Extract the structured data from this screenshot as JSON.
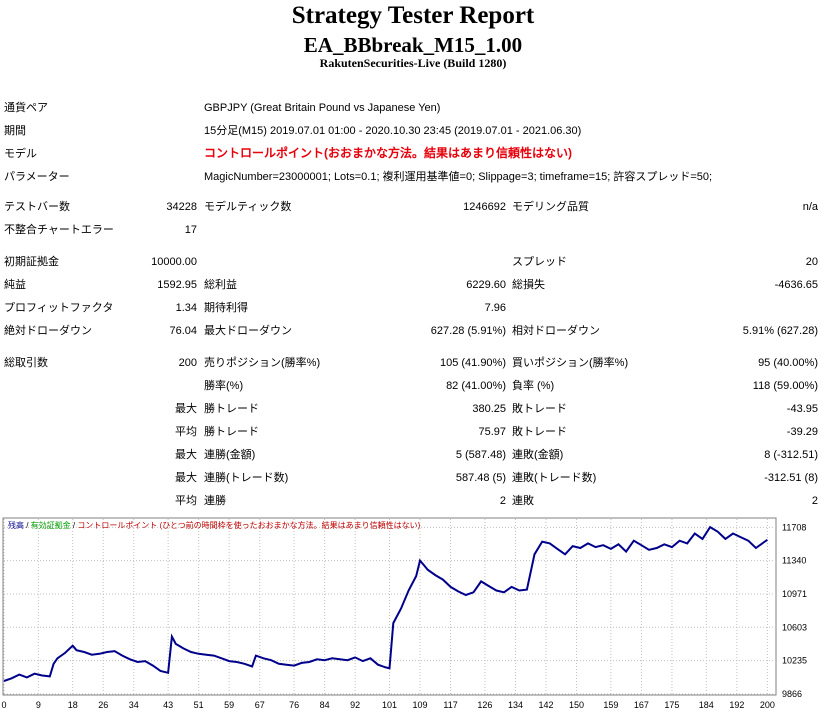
{
  "header": {
    "title": "Strategy Tester Report",
    "ea_name": "EA_BBbreak_M15_1.00",
    "broker": "RakutenSecurities-Live (Build 1280)"
  },
  "info": {
    "pair_label": "通貨ペア",
    "pair_value": "GBPJPY (Great Britain Pound vs Japanese Yen)",
    "period_label": "期間",
    "period_value": "15分足(M15) 2019.07.01 01:00 - 2020.10.30 23:45 (2019.07.01 - 2021.06.30)",
    "model_label": "モデル",
    "model_value": "コントロールポイント(おおまかな方法。結果はあまり信頼性はない)",
    "params_label": "パラメーター",
    "params_value": "MagicNumber=23000001; Lots=0.1; 複利運用基準値=0; Slippage=3; timeframe=15; 許容スプレッド=50;"
  },
  "stats": {
    "test_bars_label": "テストバー数",
    "test_bars": "34228",
    "model_ticks_label": "モデルティック数",
    "model_ticks": "1246692",
    "model_quality_label": "モデリング品質",
    "model_quality": "n/a",
    "mismatch_label": "不整合チャートエラー",
    "mismatch": "17",
    "deposit_label": "初期証拠金",
    "deposit": "10000.00",
    "spread_label": "スプレッド",
    "spread": "20",
    "net_label": "純益",
    "net": "1592.95",
    "gross_profit_label": "総利益",
    "gross_profit": "6229.60",
    "gross_loss_label": "総損失",
    "gross_loss": "-4636.65",
    "pf_label": "プロフィットファクタ",
    "pf": "1.34",
    "expected_label": "期待利得",
    "expected": "7.96",
    "abs_dd_label": "絶対ドローダウン",
    "abs_dd": "76.04",
    "max_dd_label": "最大ドローダウン",
    "max_dd": "627.28 (5.91%)",
    "rel_dd_label": "相対ドローダウン",
    "rel_dd": "5.91% (627.28)",
    "total_trades_label": "総取引数",
    "total_trades": "200",
    "short_label": "売りポジション(勝率%)",
    "short": "105 (41.90%)",
    "long_label": "買いポジション(勝率%)",
    "long": "95 (40.00%)",
    "win_rate_label": "勝率(%)",
    "win_rate": "82 (41.00%)",
    "loss_rate_label": "負率 (%)",
    "loss_rate": "118 (59.00%)",
    "max_word": "最大",
    "avg_word": "平均",
    "largest_win_label": "勝トレード",
    "largest_win": "380.25",
    "largest_loss_label": "敗トレード",
    "largest_loss": "-43.95",
    "avg_win_label": "勝トレード",
    "avg_win": "75.97",
    "avg_loss_label": "敗トレード",
    "avg_loss": "-39.29",
    "max_consec_wins_label": "連勝(金額)",
    "max_consec_wins": "5 (587.48)",
    "max_consec_losses_label": "連敗(金額)",
    "max_consec_losses": "8 (-312.51)",
    "max_consec_profit_label": "連勝(トレード数)",
    "max_consec_profit": "587.48 (5)",
    "max_consec_loss_label": "連敗(トレード数)",
    "max_consec_loss": "-312.51 (8)",
    "avg_consec_wins_label": "連勝",
    "avg_consec_wins": "2",
    "avg_consec_losses_label": "連敗",
    "avg_consec_losses": "2"
  },
  "chart_data": {
    "type": "line",
    "legend_balance": "残高",
    "legend_sep1": " / ",
    "legend_equity": "有効証拠金",
    "legend_sep2": " / ",
    "legend_note": "コントロールポイント (ひとつ前の時間枠を使ったおおまかな方法。結果はあまり信頼性はない)",
    "colors": {
      "balance": "#00008b",
      "equity": "#00a000",
      "note": "#c00000",
      "grid": "#c0c0c0"
    },
    "y_ticks": [
      9866,
      10235,
      10603,
      10971,
      11340,
      11708
    ],
    "x_ticks": [
      0,
      9,
      18,
      26,
      34,
      43,
      51,
      59,
      67,
      76,
      84,
      92,
      101,
      109,
      117,
      126,
      134,
      142,
      150,
      159,
      167,
      175,
      184,
      192,
      200
    ],
    "ylim": [
      9866,
      11800
    ],
    "xlim": [
      0,
      202
    ],
    "x": [
      0,
      2,
      4,
      6,
      8,
      10,
      12,
      13,
      14,
      16,
      18,
      19,
      21,
      23,
      25,
      27,
      29,
      31,
      33,
      35,
      37,
      39,
      41,
      43,
      44,
      45,
      47,
      49,
      51,
      53,
      55,
      57,
      59,
      61,
      63,
      65,
      66,
      68,
      70,
      72,
      74,
      76,
      78,
      80,
      82,
      84,
      86,
      88,
      90,
      92,
      94,
      96,
      98,
      100,
      101,
      102,
      104,
      106,
      108,
      109,
      110,
      111,
      113,
      115,
      117,
      119,
      121,
      123,
      125,
      127,
      129,
      131,
      133,
      135,
      137,
      139,
      141,
      143,
      145,
      147,
      149,
      151,
      153,
      155,
      157,
      159,
      161,
      163,
      165,
      167,
      169,
      171,
      173,
      175,
      177,
      179,
      181,
      183,
      185,
      187,
      189,
      191,
      193,
      195,
      197,
      199,
      200
    ],
    "y": [
      10010,
      10040,
      10080,
      10050,
      10090,
      10070,
      10060,
      10200,
      10260,
      10320,
      10400,
      10350,
      10330,
      10300,
      10310,
      10330,
      10340,
      10290,
      10250,
      10220,
      10230,
      10180,
      10120,
      10100,
      10500,
      10420,
      10370,
      10330,
      10310,
      10300,
      10290,
      10260,
      10230,
      10220,
      10200,
      10170,
      10290,
      10260,
      10240,
      10200,
      10190,
      10180,
      10210,
      10220,
      10250,
      10240,
      10260,
      10250,
      10240,
      10270,
      10230,
      10260,
      10190,
      10160,
      10150,
      10650,
      10810,
      11010,
      11170,
      11340,
      11290,
      11240,
      11180,
      11130,
      11050,
      11000,
      10960,
      10990,
      11110,
      11060,
      11010,
      10990,
      11050,
      11010,
      11020,
      11410,
      11550,
      11530,
      11470,
      11410,
      11500,
      11480,
      11530,
      11490,
      11510,
      11470,
      11520,
      11440,
      11560,
      11510,
      11460,
      11480,
      11520,
      11490,
      11560,
      11530,
      11640,
      11580,
      11710,
      11660,
      11580,
      11640,
      11600,
      11560,
      11480,
      11540,
      11570
    ]
  }
}
